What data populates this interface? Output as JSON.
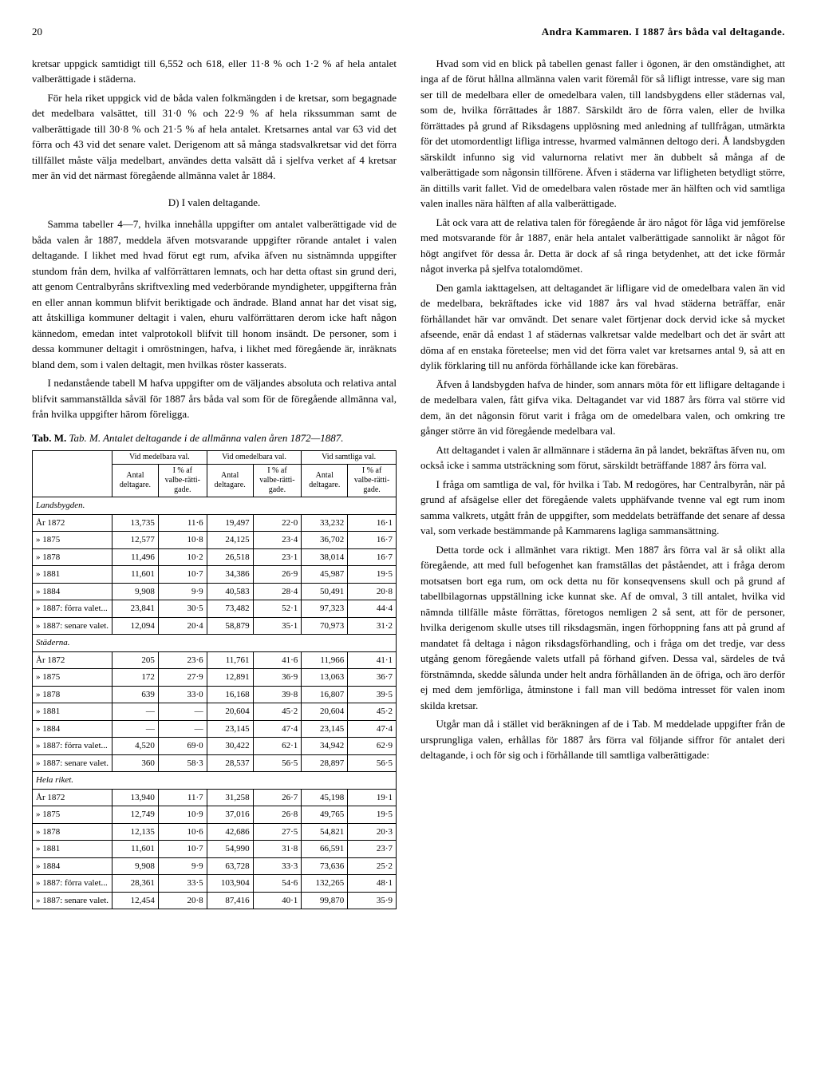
{
  "page_number": "20",
  "header_title": "Andra Kammaren. I 1887 års båda val deltagande.",
  "left": {
    "p1": "kretsar uppgick samtidigt till 6,552 och 618, eller 11·8 % och 1·2 % af hela antalet valberättigade i städerna.",
    "p2": "För hela riket uppgick vid de båda valen folkmängden i de kretsar, som begagnade det medelbara valsättet, till 31·0 % och 22·9 % af hela rikssumman samt de valberättigade till 30·8 % och 21·5 % af hela antalet. Kretsarnes antal var 63 vid det förra och 43 vid det senare valet. Derigenom att så många stadsvalkretsar vid det förra tillfället måste välja medelbart, användes detta valsätt då i sjelfva verket af 4 kretsar mer än vid det närmast föregående allmänna valet år 1884.",
    "section_d": "D) I valen deltagande.",
    "p3": "Samma tabeller 4—7, hvilka innehålla uppgifter om antalet valberättigade vid de båda valen år 1887, meddela äfven motsvarande uppgifter rörande antalet i valen deltagande. I likhet med hvad förut egt rum, afvika äfven nu sistnämnda uppgifter stundom från dem, hvilka af valförrättaren lemnats, och har detta oftast sin grund deri, att genom Centralbyråns skriftvexling med vederbörande myndigheter, uppgifterna från en eller annan kommun blifvit beriktigade och ändrade. Bland annat har det visat sig, att åtskilliga kommuner deltagit i valen, ehuru valförrättaren derom icke haft någon kännedom, emedan intet valprotokoll blifvit till honom insändt. De personer, som i dessa kommuner deltagit i omröstningen, hafva, i likhet med föregående är, inräknats bland dem, som i valen deltagit, men hvilkas röster kasserats.",
    "p4": "I nedanstående tabell M hafva uppgifter om de väljandes absoluta och relativa antal blifvit sammanställda såväl för 1887 års båda val som för de föregående allmänna val, från hvilka uppgifter härom föreligga.",
    "table_caption": "Tab. M. Antalet deltagande i de allmänna valen åren 1872—1887."
  },
  "table": {
    "col_groups": [
      "Vid medelbara val.",
      "Vid omedelbara val.",
      "Vid samtliga val."
    ],
    "subheaders": [
      "Antal deltagare.",
      "I % af valbe-rätti-gade.",
      "Antal deltagare.",
      "I % af valbe-rätti-gade.",
      "Antal deltagare.",
      "I % af valbe-rätti-gade."
    ],
    "groups": [
      {
        "title": "Landsbygden.",
        "rows": [
          {
            "label": "År 1872",
            "c": [
              "13,735",
              "11·6",
              "19,497",
              "22·0",
              "33,232",
              "16·1"
            ]
          },
          {
            "label": "»  1875",
            "c": [
              "12,577",
              "10·8",
              "24,125",
              "23·4",
              "36,702",
              "16·7"
            ]
          },
          {
            "label": "»  1878",
            "c": [
              "11,496",
              "10·2",
              "26,518",
              "23·1",
              "38,014",
              "16·7"
            ]
          },
          {
            "label": "»  1881",
            "c": [
              "11,601",
              "10·7",
              "34,386",
              "26·9",
              "45,987",
              "19·5"
            ]
          },
          {
            "label": "»  1884",
            "c": [
              "9,908",
              "9·9",
              "40,583",
              "28·4",
              "50,491",
              "20·8"
            ]
          },
          {
            "label": "»  1887: förra valet...",
            "c": [
              "23,841",
              "30·5",
              "73,482",
              "52·1",
              "97,323",
              "44·4"
            ]
          },
          {
            "label": "»  1887: senare valet.",
            "c": [
              "12,094",
              "20·4",
              "58,879",
              "35·1",
              "70,973",
              "31·2"
            ]
          }
        ]
      },
      {
        "title": "Städerna.",
        "rows": [
          {
            "label": "År 1872",
            "c": [
              "205",
              "23·6",
              "11,761",
              "41·6",
              "11,966",
              "41·1"
            ]
          },
          {
            "label": "»  1875",
            "c": [
              "172",
              "27·9",
              "12,891",
              "36·9",
              "13,063",
              "36·7"
            ]
          },
          {
            "label": "»  1878",
            "c": [
              "639",
              "33·0",
              "16,168",
              "39·8",
              "16,807",
              "39·5"
            ]
          },
          {
            "label": "»  1881",
            "c": [
              "—",
              "—",
              "20,604",
              "45·2",
              "20,604",
              "45·2"
            ]
          },
          {
            "label": "»  1884",
            "c": [
              "—",
              "—",
              "23,145",
              "47·4",
              "23,145",
              "47·4"
            ]
          },
          {
            "label": "»  1887: förra valet...",
            "c": [
              "4,520",
              "69·0",
              "30,422",
              "62·1",
              "34,942",
              "62·9"
            ]
          },
          {
            "label": "»  1887: senare valet.",
            "c": [
              "360",
              "58·3",
              "28,537",
              "56·5",
              "28,897",
              "56·5"
            ]
          }
        ]
      },
      {
        "title": "Hela riket.",
        "rows": [
          {
            "label": "År 1872",
            "c": [
              "13,940",
              "11·7",
              "31,258",
              "26·7",
              "45,198",
              "19·1"
            ]
          },
          {
            "label": "»  1875",
            "c": [
              "12,749",
              "10·9",
              "37,016",
              "26·8",
              "49,765",
              "19·5"
            ]
          },
          {
            "label": "»  1878",
            "c": [
              "12,135",
              "10·6",
              "42,686",
              "27·5",
              "54,821",
              "20·3"
            ]
          },
          {
            "label": "»  1881",
            "c": [
              "11,601",
              "10·7",
              "54,990",
              "31·8",
              "66,591",
              "23·7"
            ]
          },
          {
            "label": "»  1884",
            "c": [
              "9,908",
              "9·9",
              "63,728",
              "33·3",
              "73,636",
              "25·2"
            ]
          },
          {
            "label": "»  1887: förra valet...",
            "c": [
              "28,361",
              "33·5",
              "103,904",
              "54·6",
              "132,265",
              "48·1"
            ]
          },
          {
            "label": "»  1887: senare valet.",
            "c": [
              "12,454",
              "20·8",
              "87,416",
              "40·1",
              "99,870",
              "35·9"
            ]
          }
        ]
      }
    ]
  },
  "right": {
    "p1": "Hvad som vid en blick på tabellen genast faller i ögonen, är den omständighet, att inga af de förut hållna allmänna valen varit föremål för så lifligt intresse, vare sig man ser till de medelbara eller de omedelbara valen, till landsbygdens eller städernas val, som de, hvilka förrättades år 1887. Särskildt äro de förra valen, eller de hvilka förrättades på grund af Riksdagens upplösning med anledning af tullfrågan, utmärkta för det utomordentligt lifliga intresse, hvarmed valmännen deltogo deri. Å landsbygden särskildt infunno sig vid valurnorna relativt mer än dubbelt så många af de valberättigade som någonsin tillförene. Äfven i städerna var lifligheten betydligt större, än dittills varit fallet. Vid de omedelbara valen röstade mer än hälften och vid samtliga valen inalles nära hälften af alla valberättigade.",
    "p2": "Låt ock vara att de relativa talen för föregående år äro något för låga vid jemförelse med motsvarande för år 1887, enär hela antalet valberättigade sannolikt är något för högt angifvet för dessa år. Detta är dock af så ringa betydenhet, att det icke förmår något inverka på sjelfva totalomdömet.",
    "p3": "Den gamla iakttagelsen, att deltagandet är lifligare vid de omedelbara valen än vid de medelbara, bekräftades icke vid 1887 års val hvad städerna beträffar, enär förhållandet här var omvändt. Det senare valet förtjenar dock dervid icke så mycket afseende, enär då endast 1 af städernas valkretsar valde medelbart och det är svårt att döma af en enstaka företeelse; men vid det förra valet var kretsarnes antal 9, så att en dylik förklaring till nu anförda förhållande icke kan förebäras.",
    "p4": "Äfven å landsbygden hafva de hinder, som annars möta för ett lifligare deltagande i de medelbara valen, fått gifva vika. Deltagandet var vid 1887 års förra val större vid dem, än det någonsin förut varit i fråga om de omedelbara valen, och omkring tre gånger större än vid föregående medelbara val.",
    "p5": "Att deltagandet i valen är allmännare i städerna än på landet, bekräftas äfven nu, om också icke i samma utsträckning som förut, särskildt beträffande 1887 års förra val.",
    "p6": "I fråga om samtliga de val, för hvilka i Tab. M redogöres, har Centralbyrån, när på grund af afsägelse eller det föregående valets upphäfvande tvenne val egt rum inom samma valkrets, utgått från de uppgifter, som meddelats beträffande det senare af dessa val, som verkade bestämmande på Kammarens lagliga sammansättning.",
    "p7": "Detta torde ock i allmänhet vara riktigt. Men 1887 års förra val är så olikt alla föregående, att med full befogenhet kan framställas det påståendet, att i fråga derom motsatsen bort ega rum, om ock detta nu för konseqvensens skull och på grund af tabellbilagornas uppställning icke kunnat ske. Af de omval, 3 till antalet, hvilka vid nämnda tillfälle måste förrättas, företogos nemligen 2 så sent, att för de personer, hvilka derigenom skulle utses till riksdagsmän, ingen förhoppning fans att på grund af mandatet få deltaga i någon riksdagsförhandling, och i fråga om det tredje, var dess utgång genom föregående valets utfall på förhand gifven. Dessa val, särdeles de två förstnämnda, skedde sålunda under helt andra förhållanden än de öfriga, och äro derför ej med dem jemförliga, åtminstone i fall man vill bedöma intresset för valen inom skilda kretsar.",
    "p8": "Utgår man då i stället vid beräkningen af de i Tab. M meddelade uppgifter från de ursprungliga valen, erhållas för 1887 års förra val följande siffror för antalet deri deltagande, i och för sig och i förhållande till samtliga valberättigade:"
  }
}
